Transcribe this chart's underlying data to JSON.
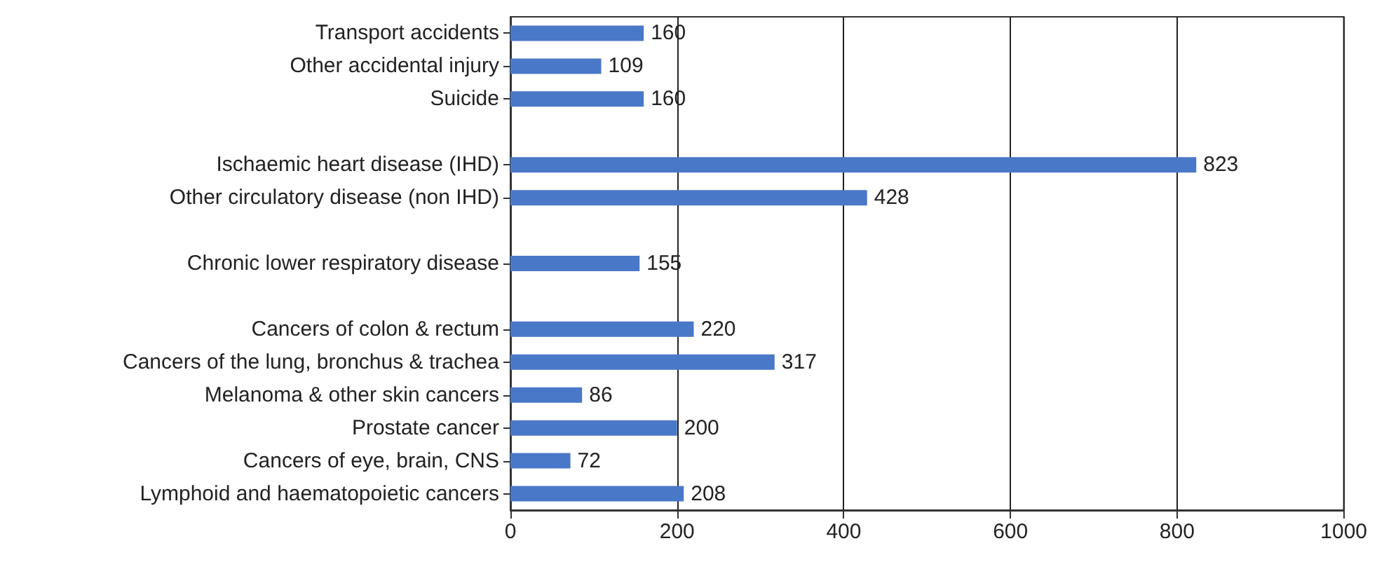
{
  "chart_data": {
    "type": "bar",
    "orientation": "horizontal",
    "categories": [
      "Transport accidents",
      "Other accidental injury",
      "Suicide",
      null,
      "Ischaemic heart disease (IHD)",
      "Other circulatory disease (non IHD)",
      null,
      "Chronic lower respiratory disease",
      null,
      "Cancers of colon & rectum",
      "Cancers of the lung, bronchus & trachea",
      "Melanoma & other skin cancers",
      "Prostate cancer",
      "Cancers of eye, brain, CNS",
      "Lymphoid and haematopoietic cancers"
    ],
    "values": [
      160,
      109,
      160,
      null,
      823,
      428,
      null,
      155,
      null,
      220,
      317,
      86,
      200,
      72,
      208
    ],
    "color": "#4a78c8",
    "xlim": [
      0,
      1000
    ],
    "xticks": [
      0,
      200,
      400,
      600,
      800,
      1000
    ],
    "grid": "x",
    "data_labels": true
  }
}
